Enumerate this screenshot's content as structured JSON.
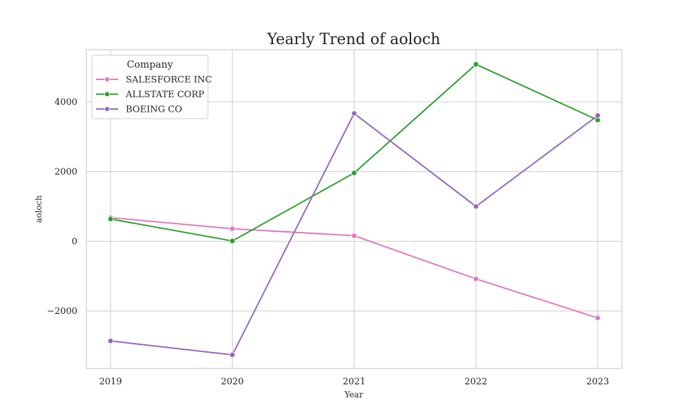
{
  "chart_data": {
    "type": "line",
    "title": "Yearly Trend of aoloch",
    "xlabel": "Year",
    "ylabel": "aoloch",
    "x": [
      2019,
      2020,
      2021,
      2022,
      2023
    ],
    "x_tick_labels": [
      "2019",
      "2020",
      "2021",
      "2022",
      "2023"
    ],
    "y_ticks": [
      -2000,
      0,
      2000,
      4000
    ],
    "y_tick_labels": [
      "−2000",
      "0",
      "2000",
      "4000"
    ],
    "ylim": [
      -3650,
      5500
    ],
    "grid": true,
    "legend": {
      "title": "Company",
      "placement": "top-left"
    },
    "series": [
      {
        "name": "SALESFORCE INC",
        "color": "#e377c2",
        "values": [
          680,
          360,
          160,
          -1080,
          -2200
        ]
      },
      {
        "name": "ALLSTATE CORP",
        "color": "#2ca02c",
        "values": [
          640,
          10,
          1960,
          5080,
          3480
        ]
      },
      {
        "name": "BOEING CO",
        "color": "#9467bd",
        "values": [
          -2860,
          -3260,
          3670,
          1000,
          3610
        ]
      }
    ]
  }
}
